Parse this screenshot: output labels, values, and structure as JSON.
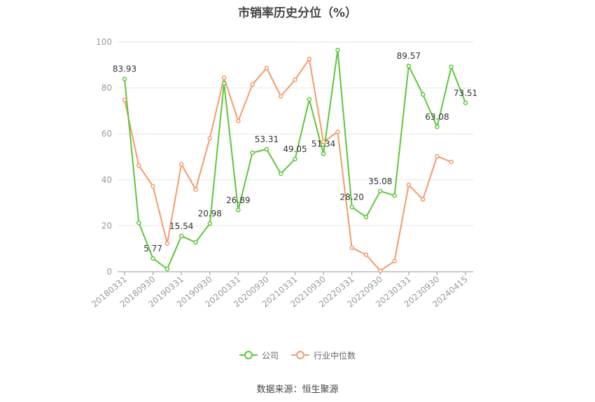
{
  "chart_data": {
    "type": "line",
    "title": "市销率历史分位（%）",
    "ylim": [
      0,
      100
    ],
    "yticks": [
      0,
      20,
      40,
      60,
      80,
      100
    ],
    "grid": true,
    "legend_position": "bottom-center",
    "x": [
      "20180331",
      "20180630",
      "20180930",
      "20181231",
      "20190331",
      "20190630",
      "20190930",
      "20191231",
      "20200331",
      "20200630",
      "20200930",
      "20201231",
      "20210331",
      "20210630",
      "20210930",
      "20211231",
      "20220331",
      "20220630",
      "20220930",
      "20221231",
      "20230331",
      "20230630",
      "20230930",
      "20231231",
      "20240415"
    ],
    "xtick_labels": [
      "20180331",
      "20180930",
      "20190331",
      "20190930",
      "20200331",
      "20200930",
      "20210331",
      "20210930",
      "20220331",
      "20220930",
      "20230331",
      "20230930",
      "20240415"
    ],
    "series": [
      {
        "name": "公司",
        "color": "#5cc73a",
        "values": [
          83.93,
          21.3,
          5.77,
          1.2,
          15.54,
          12.8,
          20.98,
          82.0,
          26.89,
          51.8,
          53.31,
          42.7,
          49.05,
          75.0,
          51.34,
          96.5,
          28.2,
          23.8,
          35.08,
          33.2,
          89.57,
          77.2,
          63.08,
          89.2,
          73.51
        ]
      },
      {
        "name": "行业中位数",
        "color": "#f59a6a",
        "values": [
          74.8,
          46.2,
          37.2,
          12.3,
          46.8,
          35.8,
          58.1,
          84.5,
          65.6,
          81.5,
          88.7,
          76.4,
          83.6,
          92.6,
          56.5,
          60.9,
          10.4,
          7.4,
          0.4,
          4.6,
          37.8,
          31.5,
          50.3,
          47.8,
          null
        ]
      }
    ],
    "point_labels": [
      {
        "series": 0,
        "index": 0,
        "text": "83.93"
      },
      {
        "series": 0,
        "index": 2,
        "text": "5.77"
      },
      {
        "series": 0,
        "index": 4,
        "text": "15.54"
      },
      {
        "series": 0,
        "index": 6,
        "text": "20.98"
      },
      {
        "series": 0,
        "index": 8,
        "text": "26.89"
      },
      {
        "series": 0,
        "index": 10,
        "text": "53.31"
      },
      {
        "series": 0,
        "index": 12,
        "text": "49.05"
      },
      {
        "series": 0,
        "index": 14,
        "text": "51.34"
      },
      {
        "series": 0,
        "index": 16,
        "text": "28.20"
      },
      {
        "series": 0,
        "index": 18,
        "text": "35.08"
      },
      {
        "series": 0,
        "index": 20,
        "text": "89.57"
      },
      {
        "series": 0,
        "index": 22,
        "text": "63.08"
      },
      {
        "series": 0,
        "index": 24,
        "text": "73.51"
      }
    ]
  },
  "legend": {
    "items": [
      {
        "label": "公司",
        "color": "#5cc73a"
      },
      {
        "label": "行业中位数",
        "color": "#f59a6a"
      }
    ]
  },
  "source": "数据来源：恒生聚源"
}
